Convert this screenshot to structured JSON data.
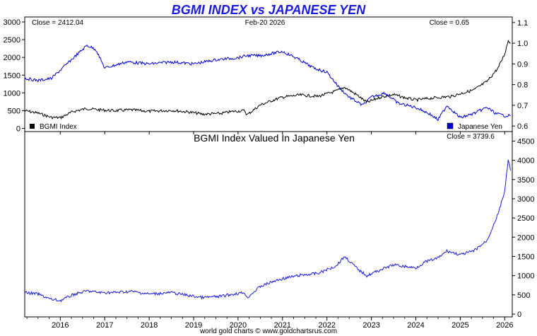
{
  "page": {
    "title": "BGMI INDEX vs JAPANESE YEN",
    "footer": "world gold charts © www.goldchartsrus.com"
  },
  "top_panel": {
    "close_left": "Close = 2412.04",
    "date": "Feb-20  2026",
    "close_right": "Close = 0.65",
    "legend_left": "BGMI Index",
    "legend_right": "Japanese Yen",
    "left_ticks": [
      "0",
      "500",
      "1000",
      "1500",
      "2000",
      "2500",
      "3000"
    ],
    "right_ticks": [
      "0.6",
      "0.7",
      "0.8",
      "0.9",
      "1.0",
      "1.1"
    ]
  },
  "bottom_panel": {
    "title": "BGMI Index Valued In Japanese Yen",
    "close": "Close = 3739.6",
    "right_ticks": [
      "0",
      "500",
      "1000",
      "1500",
      "2000",
      "2500",
      "3000",
      "3500",
      "4000",
      "4500"
    ]
  },
  "x_ticks": [
    "2016",
    "2017",
    "2018",
    "2019",
    "2020",
    "2021",
    "2022",
    "2023",
    "2024",
    "2025",
    "2026"
  ],
  "colors": {
    "title": "#1a1adc",
    "bgmi": "#000000",
    "yen": "#0000cc",
    "ratio": "#1a1adc"
  },
  "chart_data": [
    {
      "type": "line",
      "title": "BGMI INDEX vs JAPANESE YEN",
      "x_range": [
        2015.2,
        2026.17
      ],
      "y_left_range": [
        -50,
        3100
      ],
      "y_right_range": [
        0.58,
        1.12
      ],
      "series": [
        {
          "name": "BGMI Index",
          "axis": "left",
          "x": [
            2015.2,
            2015.5,
            2015.8,
            2016.0,
            2016.3,
            2016.6,
            2016.9,
            2017.2,
            2017.6,
            2018.0,
            2018.5,
            2018.9,
            2019.2,
            2019.6,
            2019.9,
            2020.15,
            2020.2,
            2020.5,
            2020.8,
            2021.0,
            2021.4,
            2021.8,
            2022.2,
            2022.4,
            2022.7,
            2022.9,
            2023.2,
            2023.5,
            2023.8,
            2024.0,
            2024.4,
            2024.8,
            2025.0,
            2025.3,
            2025.6,
            2025.85,
            2026.0,
            2026.08,
            2026.13
          ],
          "values": [
            500,
            430,
            310,
            300,
            480,
            560,
            520,
            500,
            520,
            480,
            510,
            460,
            400,
            420,
            480,
            500,
            380,
            660,
            800,
            880,
            940,
            900,
            1050,
            1160,
            920,
            730,
            880,
            950,
            850,
            800,
            860,
            900,
            980,
            1080,
            1320,
            1700,
            2100,
            2480,
            2412
          ]
        },
        {
          "name": "Japanese Yen",
          "axis": "right",
          "x": [
            2015.2,
            2015.5,
            2015.8,
            2016.0,
            2016.3,
            2016.6,
            2016.8,
            2017.0,
            2017.5,
            2018.0,
            2018.5,
            2019.0,
            2019.5,
            2020.0,
            2020.2,
            2020.5,
            2021.0,
            2021.3,
            2021.7,
            2022.0,
            2022.3,
            2022.5,
            2022.8,
            2023.0,
            2023.3,
            2023.6,
            2024.0,
            2024.3,
            2024.5,
            2024.7,
            2025.0,
            2025.3,
            2025.6,
            2025.8,
            2026.0,
            2026.13
          ],
          "values": [
            0.83,
            0.82,
            0.83,
            0.87,
            0.93,
            0.99,
            0.97,
            0.88,
            0.91,
            0.9,
            0.91,
            0.9,
            0.92,
            0.93,
            0.94,
            0.94,
            0.96,
            0.93,
            0.88,
            0.86,
            0.78,
            0.74,
            0.7,
            0.74,
            0.76,
            0.71,
            0.69,
            0.66,
            0.63,
            0.7,
            0.64,
            0.66,
            0.69,
            0.66,
            0.65,
            0.65
          ]
        }
      ],
      "legend": [
        "BGMI Index",
        "Japanese Yen"
      ],
      "left_axis_ticks": [
        0,
        500,
        1000,
        1500,
        2000,
        2500,
        3000
      ],
      "right_axis_ticks": [
        0.6,
        0.7,
        0.8,
        0.9,
        1.0,
        1.1
      ]
    },
    {
      "type": "line",
      "title": "BGMI Index Valued In Japanese Yen",
      "x_range": [
        2015.2,
        2026.17
      ],
      "y_range": [
        0,
        4600
      ],
      "series": [
        {
          "name": "",
          "x": [
            2015.2,
            2015.5,
            2015.8,
            2016.0,
            2016.3,
            2016.6,
            2016.9,
            2017.2,
            2017.6,
            2018.0,
            2018.5,
            2018.9,
            2019.2,
            2019.6,
            2019.9,
            2020.15,
            2020.2,
            2020.5,
            2020.8,
            2021.0,
            2021.4,
            2021.8,
            2022.2,
            2022.4,
            2022.7,
            2022.9,
            2023.2,
            2023.5,
            2023.8,
            2024.0,
            2024.2,
            2024.5,
            2024.7,
            2025.0,
            2025.3,
            2025.6,
            2025.85,
            2026.0,
            2026.08,
            2026.13
          ],
          "values": [
            560,
            520,
            380,
            350,
            510,
            600,
            560,
            560,
            590,
            520,
            560,
            480,
            430,
            460,
            520,
            560,
            420,
            720,
            850,
            920,
            1010,
            1060,
            1250,
            1500,
            1160,
            1000,
            1150,
            1280,
            1230,
            1200,
            1350,
            1460,
            1640,
            1540,
            1640,
            1910,
            2600,
            3200,
            4000,
            3739.6
          ]
        }
      ],
      "right_axis_ticks": [
        0,
        500,
        1000,
        1500,
        2000,
        2500,
        3000,
        3500,
        4000,
        4500
      ]
    }
  ]
}
